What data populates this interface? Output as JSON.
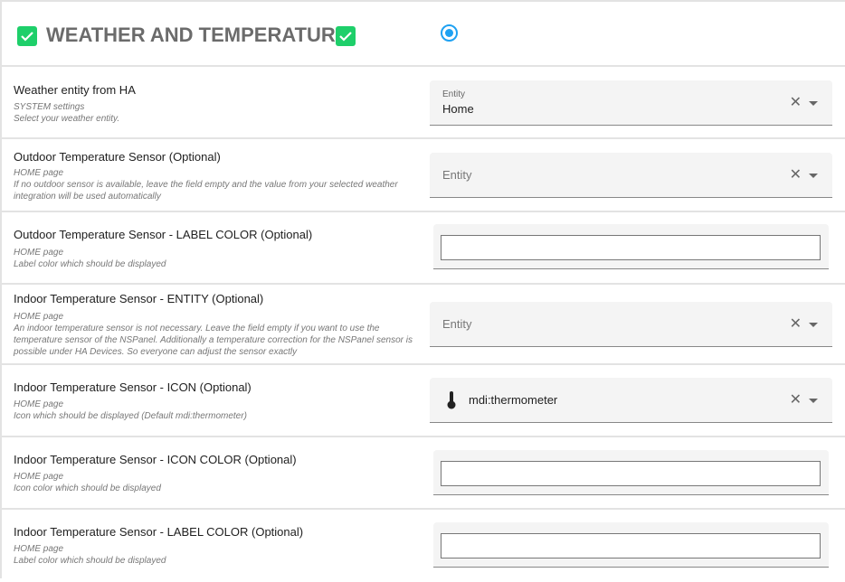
{
  "header": {
    "title": "WEATHER AND TEMPERATURE",
    "enabled": true,
    "selected": true,
    "accent": "#1ea1f2",
    "check_color": "#1ecf6a"
  },
  "rows": [
    {
      "label": "Weather entity from HA",
      "desc1": "SYSTEM settings",
      "desc2": "Select your weather entity.",
      "field_label": "Entity",
      "value": "Home"
    },
    {
      "label": "Outdoor Temperature Sensor (Optional)",
      "desc1": "HOME page",
      "desc2": "If no outdoor sensor is available, leave the field empty and the value from your selected weather integration will be used automatically",
      "placeholder": "Entity"
    },
    {
      "label": "Outdoor Temperature Sensor - LABEL COLOR (Optional)",
      "desc1": "HOME page",
      "desc2": "Label color which should be displayed",
      "value": ""
    },
    {
      "label": "Indoor Temperature Sensor - ENTITY (Optional)",
      "desc1": "HOME page",
      "desc2": "An indoor temperature sensor is not necessary. Leave the field empty if you want to use the temperature sensor of the NSPanel. Additionally a temperature correction for the NSPanel sensor is possible under HA Devices. So everyone can adjust the sensor exactly",
      "placeholder": "Entity"
    },
    {
      "label": "Indoor Temperature Sensor - ICON (Optional)",
      "desc1": "HOME page",
      "desc2": "Icon which should be displayed (Default mdi:thermometer)",
      "value": "mdi:thermometer",
      "icon": "thermometer-icon"
    },
    {
      "label": "Indoor Temperature Sensor - ICON COLOR (Optional)",
      "desc1": "HOME page",
      "desc2": "Icon color which should be displayed",
      "value": ""
    },
    {
      "label": "Indoor Temperature Sensor - LABEL COLOR (Optional)",
      "desc1": "HOME page",
      "desc2": "Label color which should be displayed",
      "value": ""
    }
  ]
}
